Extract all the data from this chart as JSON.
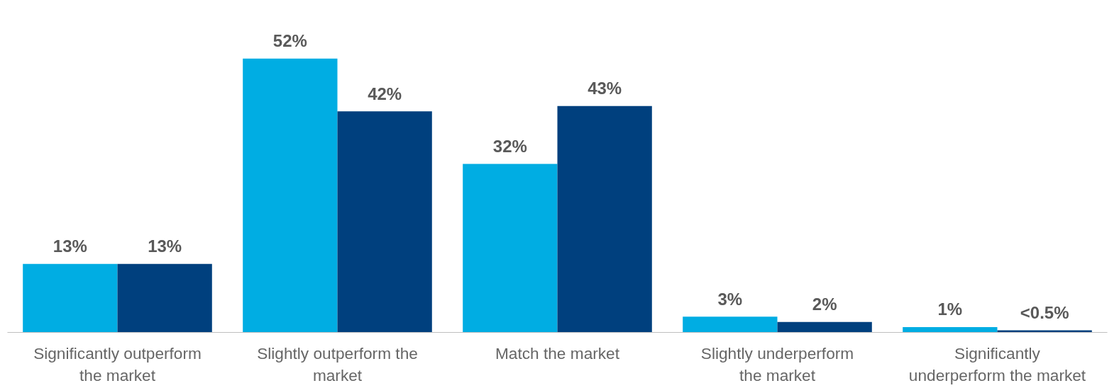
{
  "chart_data": {
    "type": "bar",
    "categories": [
      "Significantly outperform the market",
      "Slightly outperform the market",
      "Match the market",
      "Slightly underperform the market",
      "Significantly underperform the market"
    ],
    "series": [
      {
        "color": "#00ade3",
        "values": [
          13,
          52,
          32,
          3,
          1
        ],
        "value_labels": [
          "13%",
          "52%",
          "32%",
          "3%",
          "1%"
        ]
      },
      {
        "color": "#00407e",
        "values": [
          13,
          42,
          43,
          2,
          0.4
        ],
        "value_labels": [
          "13%",
          "42%",
          "43%",
          "2%",
          "<0.5%"
        ]
      }
    ],
    "grid": false
  }
}
